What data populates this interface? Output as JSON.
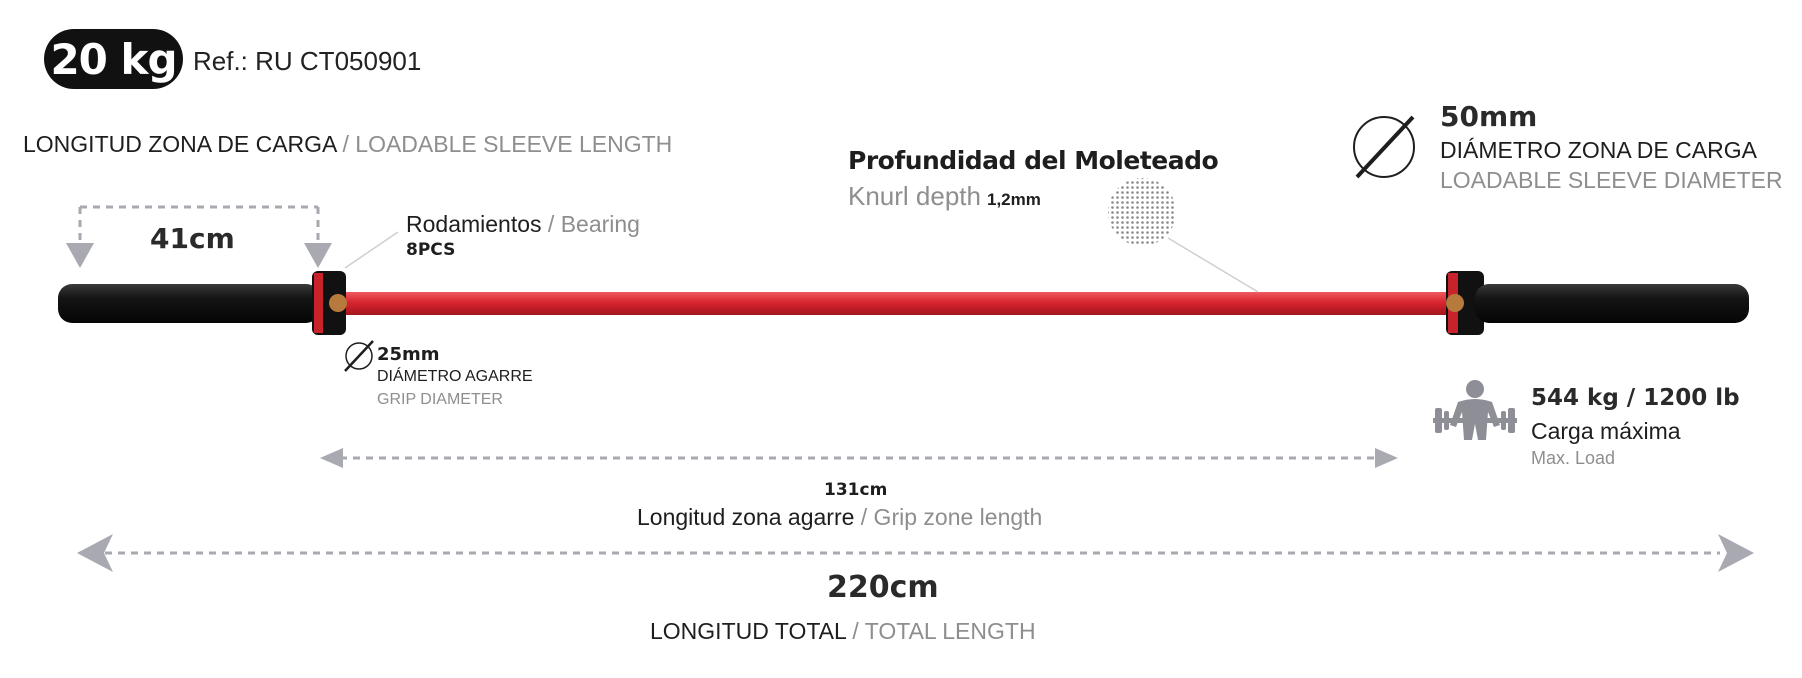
{
  "weight": "20 kg",
  "reference": "Ref.: RU CT050901",
  "sleeve_length": {
    "label_es": "LONGITUD ZONA DE CARGA",
    "label_en": "/ LOADABLE SLEEVE LENGTH",
    "value": "41cm"
  },
  "bearing": {
    "label_es": "Rodamientos",
    "label_en": "/ Bearing",
    "value": "8PCS"
  },
  "knurl": {
    "label_es": "Profundidad del Moleteado",
    "label_en": "Knurl depth",
    "value": "1,2mm"
  },
  "sleeve_diameter": {
    "value": "50mm",
    "label_es": "DIÁMETRO ZONA DE CARGA",
    "label_en": "LOADABLE SLEEVE DIAMETER"
  },
  "grip_diameter": {
    "value": "25mm",
    "label_es": "DIÁMETRO AGARRE",
    "label_en": "GRIP DIAMETER"
  },
  "max_load": {
    "value": "544 kg / 1200 lb",
    "label_es": "Carga máxima",
    "label_en": "Max. Load"
  },
  "grip_zone": {
    "value": "131cm",
    "label_es": "Longitud zona agarre",
    "label_en": "/ Grip zone length"
  },
  "total_length": {
    "value": "220cm",
    "label_es": "LONGITUD TOTAL",
    "label_en": "/ TOTAL LENGTH"
  },
  "colors": {
    "bar_red": "#d8252f",
    "sleeve_black": "#141414",
    "dim_grey": "#a9a9b2",
    "text_grey": "#8e8e8e"
  }
}
